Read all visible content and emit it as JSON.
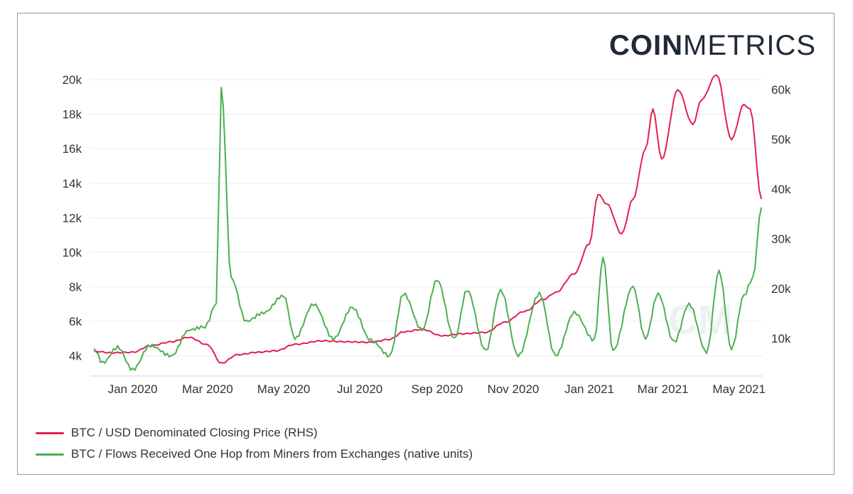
{
  "logo": {
    "bold": "COIN",
    "light": "METRICS"
  },
  "watermark": "CM",
  "chart_data": {
    "type": "line",
    "x_ticks": [
      "Jan 2020",
      "Mar 2020",
      "May 2020",
      "Jul 2020",
      "Sep 2020",
      "Nov 2020",
      "Jan 2021",
      "Mar 2021",
      "May 2021"
    ],
    "y_left": {
      "ticks": [
        "4k",
        "6k",
        "8k",
        "10k",
        "12k",
        "14k",
        "16k",
        "18k",
        "20k"
      ],
      "tick_values": [
        4000,
        6000,
        8000,
        10000,
        12000,
        14000,
        16000,
        18000,
        20000
      ],
      "range": [
        3000,
        20000
      ]
    },
    "y_right": {
      "ticks": [
        "10k",
        "20k",
        "30k",
        "40k",
        "50k",
        "60k"
      ],
      "tick_values": [
        10000,
        20000,
        30000,
        40000,
        50000,
        60000
      ],
      "range": [
        3000,
        62000
      ]
    },
    "grid": "horizontal",
    "legend_position": "bottom-left",
    "series": [
      {
        "name": "BTC / USD Denominated Closing Price (RHS)",
        "axis": "right",
        "color": "#e3204f",
        "points": [
          [
            "2019-12-01",
            7400
          ],
          [
            "2019-12-15",
            7100
          ],
          [
            "2020-01-01",
            7200
          ],
          [
            "2020-01-15",
            8500
          ],
          [
            "2020-02-01",
            9300
          ],
          [
            "2020-02-15",
            10200
          ],
          [
            "2020-03-01",
            8700
          ],
          [
            "2020-03-12",
            5000
          ],
          [
            "2020-03-25",
            6700
          ],
          [
            "2020-04-10",
            7200
          ],
          [
            "2020-04-25",
            7500
          ],
          [
            "2020-05-10",
            8800
          ],
          [
            "2020-06-01",
            9500
          ],
          [
            "2020-06-20",
            9300
          ],
          [
            "2020-07-10",
            9200
          ],
          [
            "2020-07-25",
            9800
          ],
          [
            "2020-08-05",
            11300
          ],
          [
            "2020-08-20",
            11800
          ],
          [
            "2020-09-05",
            10500
          ],
          [
            "2020-09-20",
            10900
          ],
          [
            "2020-10-10",
            11200
          ],
          [
            "2020-10-25",
            13200
          ],
          [
            "2020-11-10",
            15400
          ],
          [
            "2020-11-25",
            17800
          ],
          [
            "2020-12-05",
            19200
          ],
          [
            "2020-12-20",
            23000
          ],
          [
            "2021-01-01",
            29000
          ],
          [
            "2021-01-08",
            39000
          ],
          [
            "2021-01-15",
            37000
          ],
          [
            "2021-01-27",
            31000
          ],
          [
            "2021-02-05",
            38000
          ],
          [
            "2021-02-15",
            48000
          ],
          [
            "2021-02-21",
            56000
          ],
          [
            "2021-02-28",
            46000
          ],
          [
            "2021-03-13",
            60000
          ],
          [
            "2021-03-25",
            53000
          ],
          [
            "2021-04-01",
            58000
          ],
          [
            "2021-04-13",
            63000
          ],
          [
            "2021-04-25",
            50000
          ],
          [
            "2021-05-05",
            57000
          ],
          [
            "2021-05-10",
            56000
          ],
          [
            "2021-05-19",
            38000
          ]
        ]
      },
      {
        "name": "BTC / Flows Received One Hop from Miners from Exchanges (native units)",
        "axis": "left",
        "color": "#4caf50",
        "points": [
          [
            "2019-12-01",
            4400
          ],
          [
            "2019-12-08",
            3600
          ],
          [
            "2019-12-20",
            4500
          ],
          [
            "2020-01-01",
            3200
          ],
          [
            "2020-01-15",
            4600
          ],
          [
            "2020-02-01",
            4000
          ],
          [
            "2020-02-15",
            5500
          ],
          [
            "2020-02-28",
            5700
          ],
          [
            "2020-03-08",
            7000
          ],
          [
            "2020-03-12",
            19500
          ],
          [
            "2020-03-20",
            8500
          ],
          [
            "2020-04-01",
            6000
          ],
          [
            "2020-04-15",
            6500
          ],
          [
            "2020-05-01",
            7500
          ],
          [
            "2020-05-10",
            5000
          ],
          [
            "2020-05-25",
            7000
          ],
          [
            "2020-06-10",
            5000
          ],
          [
            "2020-06-25",
            6800
          ],
          [
            "2020-07-10",
            4900
          ],
          [
            "2020-07-25",
            4000
          ],
          [
            "2020-08-05",
            7600
          ],
          [
            "2020-08-20",
            5500
          ],
          [
            "2020-09-01",
            8400
          ],
          [
            "2020-09-15",
            5000
          ],
          [
            "2020-09-25",
            7800
          ],
          [
            "2020-10-10",
            4300
          ],
          [
            "2020-10-22",
            7800
          ],
          [
            "2020-11-05",
            4000
          ],
          [
            "2020-11-22",
            7600
          ],
          [
            "2020-12-05",
            4000
          ],
          [
            "2020-12-20",
            6500
          ],
          [
            "2021-01-05",
            4900
          ],
          [
            "2021-01-12",
            9700
          ],
          [
            "2021-01-20",
            4300
          ],
          [
            "2021-02-05",
            8000
          ],
          [
            "2021-02-15",
            5000
          ],
          [
            "2021-02-25",
            7600
          ],
          [
            "2021-03-10",
            4800
          ],
          [
            "2021-03-22",
            7000
          ],
          [
            "2021-04-05",
            4200
          ],
          [
            "2021-04-15",
            8900
          ],
          [
            "2021-04-25",
            4400
          ],
          [
            "2021-05-05",
            7500
          ],
          [
            "2021-05-12",
            8500
          ],
          [
            "2021-05-19",
            12600
          ]
        ]
      }
    ]
  }
}
